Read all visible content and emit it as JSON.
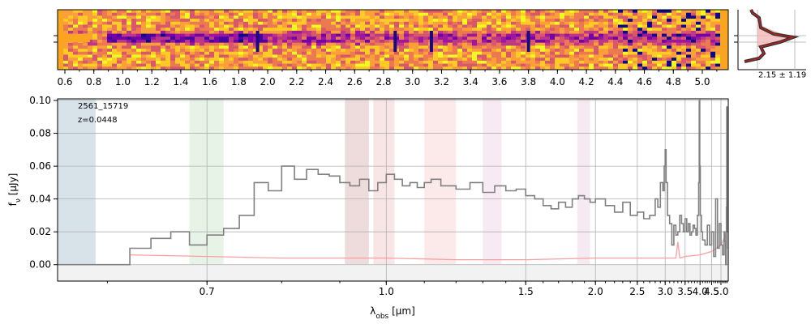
{
  "chart_data": [
    {
      "type": "heatmap",
      "panel": "2d-spectrum",
      "top_tick_labels": [
        "0.6",
        "0.8",
        "1.0",
        "1.2",
        "1.4",
        "1.6",
        "1.8",
        "2.0",
        "2.2",
        "2.4",
        "2.6",
        "2.8",
        "3.0",
        "3.2",
        "3.4",
        "3.6",
        "3.8",
        "4.0",
        "4.2",
        "4.4",
        "4.6",
        "4.8",
        "5.0"
      ],
      "features_at_um": [
        1.93,
        2.88,
        3.13,
        3.8
      ],
      "colormap": "plasma"
    },
    {
      "type": "line",
      "panel": "profile",
      "annotation": "2.15 ± 1.19",
      "peak_offset": 2.15,
      "width": 1.19,
      "curve_color": "#b22222",
      "fill_color": "#f4b8b8"
    },
    {
      "type": "line",
      "panel": "1d-spectrum",
      "object_id": "2561_15719",
      "redshift_label": "z=0.0448",
      "xlabel_main": "λ",
      "xlabel_sub": "obs",
      "xlabel_unit": " [μm]",
      "ylabel_main": "f",
      "ylabel_sub": "ν",
      "ylabel_unit": " [μJy]",
      "xlim": [
        0.56,
        5.48
      ],
      "ylim": [
        -0.01,
        0.101
      ],
      "x_ticks": [
        0.7,
        1.0,
        1.5,
        2.0,
        2.5,
        3.0,
        3.5,
        4.0,
        4.5,
        5.0
      ],
      "x_tick_labels": [
        "0.7",
        "1.0",
        "1.5",
        "2.0",
        "2.5",
        "3.0",
        "3.5",
        "4.0",
        "4.5",
        "5.0"
      ],
      "y_ticks": [
        0.0,
        0.02,
        0.04,
        0.06,
        0.08,
        0.1
      ],
      "y_tick_labels": [
        "0.00",
        "0.02",
        "0.04",
        "0.06",
        "0.08",
        "0.10"
      ],
      "grid": true,
      "series": [
        {
          "color": "#808080",
          "x": [
            0.56,
            0.6,
            0.62,
            0.64,
            0.66,
            0.68,
            0.7,
            0.72,
            0.74,
            0.76,
            0.78,
            0.8,
            0.82,
            0.84,
            0.86,
            0.88,
            0.9,
            0.92,
            0.94,
            0.96,
            0.98,
            1.0,
            1.02,
            1.04,
            1.06,
            1.08,
            1.1,
            1.12,
            1.15,
            1.2,
            1.25,
            1.3,
            1.35,
            1.4,
            1.45,
            1.5,
            1.55,
            1.6,
            1.65,
            1.7,
            1.75,
            1.8,
            1.85,
            1.9,
            1.95,
            2.0,
            2.1,
            2.2,
            2.3,
            2.4,
            2.5,
            2.6,
            2.7,
            2.8,
            2.85,
            2.9,
            2.95,
            2.98,
            3.0,
            3.02,
            3.05,
            3.1,
            3.15,
            3.2,
            3.25,
            3.3,
            3.35,
            3.4,
            3.45,
            3.5,
            3.55,
            3.6,
            3.65,
            3.7,
            3.75,
            3.8,
            3.85,
            3.9,
            3.95,
            3.97,
            3.99,
            4.01,
            4.05,
            4.1,
            4.2,
            4.3,
            4.4,
            4.5,
            4.6,
            4.7,
            4.8,
            4.9,
            5.0,
            5.1,
            5.2,
            5.25,
            5.3,
            5.33,
            5.35,
            5.37,
            5.4,
            5.48
          ],
          "y": [
            0.0,
            0.0,
            0.01,
            0.016,
            0.02,
            0.012,
            0.018,
            0.022,
            0.03,
            0.05,
            0.045,
            0.06,
            0.052,
            0.058,
            0.055,
            0.054,
            0.05,
            0.048,
            0.052,
            0.045,
            0.05,
            0.055,
            0.052,
            0.048,
            0.05,
            0.047,
            0.05,
            0.052,
            0.048,
            0.046,
            0.05,
            0.044,
            0.048,
            0.045,
            0.046,
            0.042,
            0.04,
            0.036,
            0.034,
            0.038,
            0.035,
            0.04,
            0.042,
            0.04,
            0.038,
            0.04,
            0.036,
            0.032,
            0.038,
            0.03,
            0.032,
            0.028,
            0.03,
            0.04,
            0.035,
            0.05,
            0.045,
            0.06,
            0.07,
            0.05,
            0.03,
            0.025,
            0.012,
            0.024,
            0.018,
            0.02,
            0.03,
            0.025,
            0.02,
            0.028,
            0.02,
            0.025,
            0.018,
            0.02,
            0.024,
            0.022,
            0.018,
            0.03,
            0.05,
            0.1,
            0.06,
            0.03,
            0.02,
            0.015,
            0.012,
            0.024,
            0.012,
            0.02,
            0.005,
            0.04,
            0.01,
            0.025,
            0.012,
            0.006,
            0.02,
            0.014,
            0.0,
            0.01,
            0.035,
            0.096,
            0.02,
            0.0
          ]
        },
        {
          "color": "#f8a0a0",
          "x": [
            0.62,
            0.7,
            0.8,
            0.9,
            1.0,
            1.2,
            1.5,
            2.0,
            2.5,
            3.0,
            3.25,
            3.3,
            3.35,
            3.5,
            4.0,
            4.5,
            5.0,
            5.2,
            5.3,
            5.35
          ],
          "y": [
            0.006,
            0.005,
            0.004,
            0.004,
            0.004,
            0.003,
            0.003,
            0.004,
            0.004,
            0.004,
            0.004,
            0.014,
            0.004,
            0.005,
            0.006,
            0.008,
            0.012,
            0.016,
            0.018,
            0.012
          ]
        }
      ],
      "shaded_bands_um": [
        [
          0.56,
          0.59
        ],
        [
          0.68,
          0.72
        ],
        [
          0.91,
          0.96
        ],
        [
          0.97,
          1.02
        ],
        [
          1.1,
          1.2
        ],
        [
          1.3,
          1.38
        ],
        [
          1.84,
          1.95
        ]
      ]
    }
  ]
}
